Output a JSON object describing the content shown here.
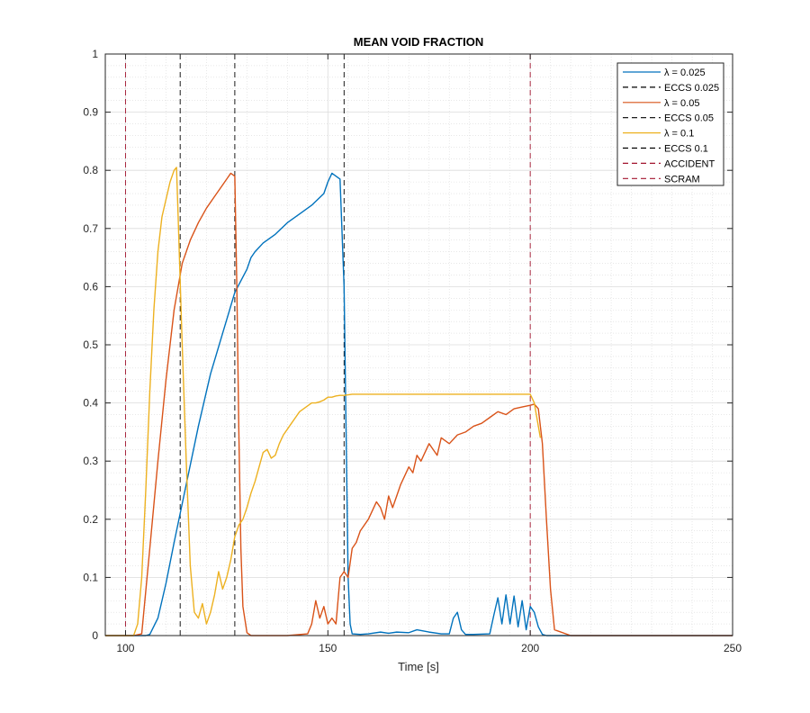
{
  "chart_data": {
    "type": "line",
    "title": "MEAN VOID FRACTION",
    "xlabel": "Time [s]",
    "ylabel": "",
    "xlim": [
      95,
      250
    ],
    "ylim": [
      0,
      1
    ],
    "xticks": [
      100,
      150,
      200,
      250
    ],
    "yticks": [
      0,
      0.1,
      0.2,
      0.3,
      0.4,
      0.5,
      0.6,
      0.7,
      0.8,
      0.9,
      1
    ],
    "xtick_labels": [
      "100",
      "150",
      "200",
      "250"
    ],
    "ytick_labels": [
      "0",
      "0.1",
      "0.2",
      "0.3",
      "0.4",
      "0.5",
      "0.6",
      "0.7",
      "0.8",
      "0.9",
      "1"
    ],
    "grid": true,
    "minor_grid": true,
    "legend_position": "top-right",
    "series": [
      {
        "name": "λ = 0.025",
        "color": "#0072BD",
        "x": [
          95,
          100,
          105,
          106,
          108,
          110,
          112,
          115,
          118,
          121,
          124,
          127,
          130,
          131,
          132,
          134,
          137,
          140,
          143,
          146,
          149,
          150,
          151,
          152,
          153,
          154,
          154.6,
          155,
          155.5,
          156,
          158,
          160,
          163,
          165,
          167,
          170,
          172,
          175,
          178,
          180,
          181,
          182,
          183,
          184,
          186,
          190,
          191,
          192,
          193,
          194,
          195,
          196,
          197,
          198,
          199,
          200,
          201,
          202,
          203,
          204,
          205,
          210,
          220,
          230,
          240,
          250
        ],
        "y": [
          0,
          0,
          0,
          0.002,
          0.03,
          0.09,
          0.16,
          0.26,
          0.36,
          0.45,
          0.52,
          0.59,
          0.63,
          0.65,
          0.66,
          0.675,
          0.69,
          0.71,
          0.725,
          0.74,
          0.76,
          0.78,
          0.795,
          0.79,
          0.785,
          0.6,
          0.3,
          0.1,
          0.02,
          0.003,
          0.002,
          0.003,
          0.006,
          0.004,
          0.006,
          0.005,
          0.01,
          0.006,
          0.003,
          0.003,
          0.03,
          0.04,
          0.01,
          0.002,
          0.002,
          0.003,
          0.035,
          0.065,
          0.02,
          0.07,
          0.02,
          0.068,
          0.015,
          0.06,
          0.01,
          0.05,
          0.04,
          0.015,
          0.002,
          0,
          0,
          0,
          0,
          0,
          0,
          0
        ]
      },
      {
        "name": "λ = 0.05",
        "color": "#D95319",
        "x": [
          95,
          100,
          102,
          104,
          106,
          108,
          110,
          112,
          114,
          116,
          118,
          120,
          122,
          124,
          126,
          127,
          127.5,
          128,
          128.5,
          129,
          130,
          131,
          140,
          145,
          146,
          147,
          148,
          149,
          150,
          151,
          152,
          152.5,
          153,
          154,
          155,
          156,
          157,
          158,
          160,
          162,
          163,
          164,
          165,
          166,
          168,
          170,
          171,
          172,
          173,
          175,
          176,
          177,
          178,
          180,
          182,
          184,
          186,
          188,
          190,
          192,
          194,
          196,
          198,
          200,
          201,
          202,
          203,
          204,
          205,
          206,
          210,
          220,
          230,
          240,
          250
        ],
        "y": [
          0,
          0,
          0,
          0.003,
          0.15,
          0.3,
          0.44,
          0.56,
          0.64,
          0.68,
          0.71,
          0.735,
          0.755,
          0.775,
          0.795,
          0.79,
          0.6,
          0.35,
          0.15,
          0.05,
          0.005,
          0,
          0,
          0.003,
          0.02,
          0.06,
          0.03,
          0.05,
          0.02,
          0.03,
          0.02,
          0.06,
          0.1,
          0.11,
          0.1,
          0.15,
          0.16,
          0.18,
          0.2,
          0.23,
          0.22,
          0.2,
          0.24,
          0.22,
          0.26,
          0.29,
          0.28,
          0.31,
          0.3,
          0.33,
          0.32,
          0.31,
          0.34,
          0.33,
          0.345,
          0.35,
          0.36,
          0.365,
          0.375,
          0.385,
          0.38,
          0.39,
          0.393,
          0.396,
          0.398,
          0.39,
          0.33,
          0.2,
          0.08,
          0.01,
          0,
          0,
          0,
          0,
          0
        ]
      },
      {
        "name": "λ = 0.1",
        "color": "#EDB120",
        "x": [
          95,
          96,
          97,
          98,
          99,
          100,
          101,
          102,
          103,
          104,
          105,
          106,
          107,
          108,
          109,
          110,
          111,
          112,
          112.6,
          113,
          114,
          115,
          116,
          117,
          118,
          119,
          120,
          121,
          122,
          123,
          124,
          125,
          126,
          127,
          128,
          129,
          130,
          131,
          132,
          133,
          134,
          135,
          136,
          137,
          138,
          139,
          140,
          141,
          142,
          143,
          144,
          145,
          146,
          147,
          148,
          149,
          150,
          151,
          152,
          153,
          154,
          155,
          156,
          160,
          170,
          180,
          190,
          195,
          198,
          200,
          201,
          202,
          202.5
        ],
        "y": [
          0,
          0,
          0,
          0,
          0,
          0,
          0,
          0,
          0.02,
          0.1,
          0.25,
          0.42,
          0.56,
          0.66,
          0.72,
          0.75,
          0.78,
          0.8,
          0.805,
          0.72,
          0.5,
          0.3,
          0.12,
          0.04,
          0.03,
          0.055,
          0.02,
          0.04,
          0.07,
          0.11,
          0.08,
          0.1,
          0.13,
          0.17,
          0.19,
          0.2,
          0.22,
          0.245,
          0.265,
          0.29,
          0.315,
          0.32,
          0.305,
          0.31,
          0.33,
          0.345,
          0.355,
          0.365,
          0.375,
          0.385,
          0.39,
          0.395,
          0.4,
          0.4,
          0.402,
          0.405,
          0.41,
          0.41,
          0.412,
          0.413,
          0.413,
          0.414,
          0.415,
          0.415,
          0.415,
          0.415,
          0.415,
          0.415,
          0.415,
          0.415,
          0.4,
          0.36,
          0.34
        ]
      }
    ],
    "vertical_lines": [
      {
        "name": "ECCS 0.025",
        "x": 154,
        "color": "#000000"
      },
      {
        "name": "ECCS 0.05",
        "x": 127,
        "color": "#000000"
      },
      {
        "name": "ECCS 0.1",
        "x": 113.5,
        "color": "#000000"
      },
      {
        "name": "ACCIDENT",
        "x": 100,
        "color": "#A2142F"
      },
      {
        "name": "SCRAM",
        "x": 200,
        "color": "#A2142F"
      }
    ],
    "legend": [
      {
        "label": "λ = 0.025",
        "color": "#0072BD",
        "style": "solid"
      },
      {
        "label": "ECCS 0.025",
        "color": "#000000",
        "style": "dashed"
      },
      {
        "label": "λ = 0.05",
        "color": "#D95319",
        "style": "solid"
      },
      {
        "label": "ECCS 0.05",
        "color": "#000000",
        "style": "dashed"
      },
      {
        "label": "λ = 0.1",
        "color": "#EDB120",
        "style": "solid"
      },
      {
        "label": "ECCS 0.1",
        "color": "#000000",
        "style": "dashed"
      },
      {
        "label": "ACCIDENT",
        "color": "#A2142F",
        "style": "dashed"
      },
      {
        "label": "SCRAM",
        "color": "#A2142F",
        "style": "dashed"
      }
    ]
  }
}
